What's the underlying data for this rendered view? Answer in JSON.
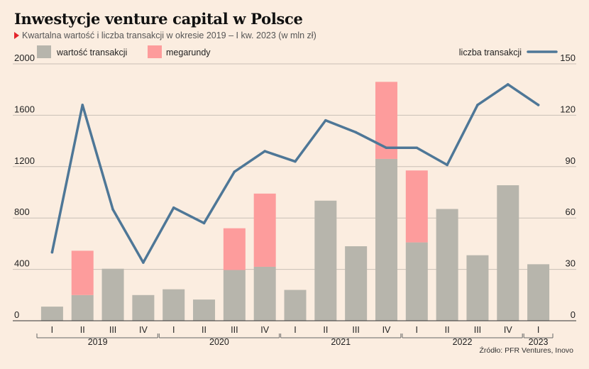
{
  "title": "Inwestycje venture capital w Polsce",
  "subtitle": "Kwartalna wartość i liczba transakcji w okresie 2019 – I kw. 2023 (w mln zł)",
  "source": "Źródło: PFR Ventures, Inovo",
  "colors": {
    "value": "#b7b5ac",
    "mega": "#fd9c9c",
    "line": "#4e7797",
    "accent": "#e3242b",
    "grid": "#c9c0b6"
  },
  "chart_data": {
    "type": "bar",
    "stacked": true,
    "categories": [
      "I",
      "II",
      "III",
      "IV",
      "I",
      "II",
      "III",
      "IV",
      "I",
      "II",
      "III",
      "IV",
      "I",
      "II",
      "III",
      "IV",
      "I"
    ],
    "groups": [
      {
        "label": "2019",
        "count": 4
      },
      {
        "label": "2020",
        "count": 4
      },
      {
        "label": "2021",
        "count": 4
      },
      {
        "label": "2022",
        "count": 4
      },
      {
        "label": "2023",
        "count": 1
      }
    ],
    "series": [
      {
        "name": "wartość transakcji",
        "axis": "left",
        "values": [
          110,
          200,
          405,
          200,
          245,
          165,
          395,
          420,
          240,
          935,
          580,
          1260,
          610,
          870,
          510,
          1055,
          440
        ]
      },
      {
        "name": "megarundy",
        "axis": "left",
        "values": [
          0,
          345,
          0,
          0,
          0,
          0,
          325,
          570,
          0,
          0,
          0,
          600,
          560,
          0,
          0,
          0,
          0
        ]
      },
      {
        "name": "liczba transakcji",
        "type": "line",
        "axis": "right",
        "values": [
          40,
          126,
          65,
          34,
          66,
          57,
          87,
          99,
          93,
          117,
          110,
          101,
          101,
          91,
          126,
          138,
          126
        ]
      }
    ],
    "yleft": {
      "ylim": [
        0,
        2000
      ],
      "ticks": [
        "0",
        "400",
        "800",
        "1200",
        "1600",
        "2000"
      ]
    },
    "yright": {
      "ylim": [
        0,
        150
      ],
      "ticks": [
        "0",
        "30",
        "60",
        "90",
        "120",
        "150"
      ]
    },
    "legend_position": "top",
    "grid": true
  }
}
